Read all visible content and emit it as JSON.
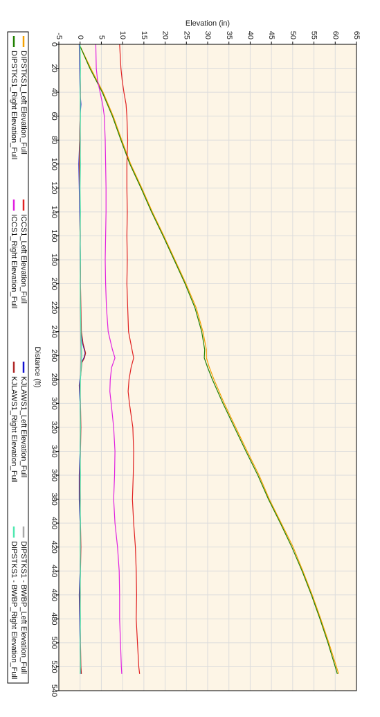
{
  "chart_data": {
    "type": "line",
    "title": "",
    "xlabel": "Distance (ft)",
    "ylabel": "Elevation (in)",
    "xlim": [
      0,
      540
    ],
    "ylim": [
      -5,
      65
    ],
    "x_ticks": [
      "0",
      "20",
      "40",
      "60",
      "80",
      "100",
      "120",
      "140",
      "160",
      "180",
      "200",
      "220",
      "240",
      "260",
      "280",
      "300",
      "320",
      "340",
      "360",
      "380",
      "400",
      "420",
      "440",
      "460",
      "480",
      "500",
      "520",
      "540"
    ],
    "y_ticks": [
      "-5",
      "0",
      "5",
      "10",
      "15",
      "20",
      "25",
      "30",
      "35",
      "40",
      "45",
      "50",
      "55",
      "60",
      "65"
    ],
    "grid": true,
    "legend_position": "left",
    "series": [
      {
        "name": "DIPSTKS1_Left Elevation_Full",
        "color": "#f5a000",
        "x": [
          0,
          20,
          40,
          60,
          80,
          100,
          120,
          140,
          160,
          180,
          200,
          220,
          240,
          255,
          262,
          270,
          280,
          300,
          320,
          340,
          360,
          380,
          400,
          420,
          440,
          460,
          480,
          500,
          520,
          526
        ],
        "y": [
          -0.2,
          2.5,
          5.4,
          7.8,
          9.8,
          11.9,
          14.5,
          17.0,
          19.7,
          22.3,
          24.9,
          27.3,
          28.9,
          29.7,
          29.7,
          30.4,
          31.5,
          33.9,
          36.6,
          39.3,
          42.1,
          44.5,
          47.3,
          50.1,
          52.4,
          54.6,
          56.6,
          58.5,
          60.3,
          60.8
        ]
      },
      {
        "name": "DIPSTKS1_Right Elevation_Full",
        "color": "#208000",
        "x": [
          0,
          20,
          40,
          60,
          80,
          100,
          120,
          140,
          160,
          180,
          200,
          220,
          240,
          255,
          262,
          270,
          280,
          300,
          320,
          340,
          360,
          380,
          400,
          420,
          440,
          460,
          480,
          500,
          520,
          526
        ],
        "y": [
          -0.2,
          2.3,
          5.2,
          7.6,
          9.6,
          11.7,
          14.3,
          16.8,
          19.5,
          22.1,
          24.7,
          27.0,
          28.6,
          29.3,
          29.2,
          30.0,
          31.1,
          33.6,
          36.3,
          39.0,
          41.8,
          44.3,
          47.1,
          49.8,
          52.2,
          54.4,
          56.4,
          58.3,
          60.0,
          60.5
        ]
      },
      {
        "name": "ICCS1_Left Elevation_Full",
        "color": "#e02020",
        "x": [
          0,
          20,
          30,
          40,
          50,
          60,
          80,
          100,
          120,
          140,
          160,
          180,
          200,
          220,
          240,
          255,
          262,
          270,
          280,
          290,
          300,
          320,
          340,
          360,
          380,
          400,
          420,
          440,
          460,
          480,
          500,
          520,
          526
        ],
        "y": [
          9.3,
          9.6,
          9.9,
          10.3,
          10.8,
          11.0,
          11.2,
          11.0,
          11.0,
          11.1,
          11.0,
          11.1,
          11.0,
          11.2,
          11.4,
          12.2,
          12.6,
          12.0,
          11.5,
          11.3,
          11.6,
          12.4,
          12.6,
          12.5,
          12.3,
          12.6,
          13.0,
          13.2,
          13.3,
          13.2,
          13.5,
          13.8,
          14.0
        ]
      },
      {
        "name": "ICCS1_Right Elevation_Full",
        "color": "#e020e0",
        "x": [
          0,
          20,
          30,
          40,
          50,
          60,
          80,
          100,
          120,
          140,
          160,
          180,
          200,
          220,
          240,
          255,
          262,
          270,
          280,
          290,
          300,
          320,
          340,
          360,
          380,
          400,
          420,
          440,
          460,
          480,
          500,
          520,
          526
        ],
        "y": [
          3.7,
          3.8,
          4.1,
          4.7,
          5.3,
          5.7,
          5.9,
          6.0,
          6.1,
          6.1,
          6.0,
          5.9,
          6.0,
          6.2,
          6.6,
          7.6,
          8.2,
          7.4,
          7.1,
          7.0,
          7.3,
          7.9,
          8.2,
          8.1,
          7.9,
          8.2,
          8.8,
          9.2,
          9.3,
          9.3,
          9.5,
          9.7,
          9.8
        ]
      },
      {
        "name": "KJLAWS1_Left Elevation_Full",
        "color": "#1010d0",
        "x": [
          0,
          20,
          40,
          50,
          60,
          80,
          100,
          120,
          140,
          160,
          180,
          200,
          220,
          240,
          250,
          258,
          262,
          266,
          275,
          285,
          300,
          320,
          340,
          360,
          380,
          400,
          420,
          440,
          460,
          480,
          500,
          520,
          526
        ],
        "y": [
          -0.2,
          -0.1,
          0.0,
          0.2,
          0.0,
          -0.1,
          -0.3,
          -0.2,
          -0.1,
          0.0,
          0.0,
          0.1,
          0.1,
          0.2,
          0.6,
          1.2,
          0.9,
          0.3,
          0.1,
          -0.2,
          0.0,
          0.1,
          0.0,
          -0.2,
          -0.2,
          0.0,
          0.1,
          0.0,
          -0.2,
          -0.1,
          0.0,
          0.1,
          0.2
        ]
      },
      {
        "name": "KJLAWS1_Right Elevation_Full",
        "color": "#b02828",
        "x": [
          0,
          20,
          40,
          60,
          80,
          100,
          120,
          140,
          160,
          180,
          200,
          220,
          240,
          250,
          258,
          262,
          266,
          275,
          285,
          300,
          320,
          340,
          360,
          380,
          400,
          420,
          440,
          460,
          480,
          500,
          520,
          526
        ],
        "y": [
          -0.1,
          0.0,
          0.1,
          0.0,
          -0.1,
          -0.2,
          -0.1,
          0.0,
          0.0,
          0.1,
          0.1,
          0.2,
          0.3,
          0.7,
          1.3,
          1.0,
          0.4,
          0.2,
          -0.1,
          0.1,
          0.2,
          0.1,
          -0.1,
          -0.1,
          0.1,
          0.2,
          0.1,
          -0.1,
          0.0,
          0.1,
          0.2,
          0.3
        ]
      },
      {
        "name": "DIPSTKS1 - BWBP_Left Elevation_Full",
        "color": "#a8a8a8",
        "x": [
          0,
          20,
          40,
          60,
          80,
          100,
          120,
          140,
          160,
          180,
          200,
          220,
          240,
          260,
          280,
          300,
          320,
          340,
          360,
          380,
          400,
          420,
          440,
          460,
          480,
          500,
          520,
          526
        ],
        "y": [
          -0.1,
          0.0,
          0.1,
          0.0,
          0.1,
          0.0,
          -0.1,
          0.0,
          0.1,
          0.0,
          0.1,
          0.0,
          0.1,
          0.2,
          0.0,
          0.1,
          0.0,
          0.1,
          0.0,
          0.1,
          0.0,
          0.1,
          0.0,
          0.1,
          0.0,
          0.1,
          0.0,
          0.1
        ]
      },
      {
        "name": "DIPSTKS1 - BWBP_Right Elevation_Full",
        "color": "#50e8b0",
        "x": [
          0,
          20,
          40,
          60,
          80,
          100,
          120,
          140,
          160,
          180,
          200,
          220,
          240,
          260,
          280,
          300,
          320,
          340,
          360,
          380,
          400,
          420,
          440,
          460,
          480,
          500,
          520,
          526
        ],
        "y": [
          0.0,
          0.1,
          0.0,
          0.1,
          0.0,
          0.1,
          0.0,
          0.1,
          0.0,
          0.1,
          0.0,
          0.1,
          0.2,
          0.4,
          0.1,
          0.0,
          0.1,
          0.0,
          0.1,
          0.0,
          0.1,
          0.0,
          0.1,
          0.0,
          0.1,
          0.0,
          0.1,
          0.0
        ]
      }
    ]
  },
  "colors": {
    "plot_background": "#fdf5e6",
    "grid": "#dcdcdc",
    "axis": "#000000"
  }
}
